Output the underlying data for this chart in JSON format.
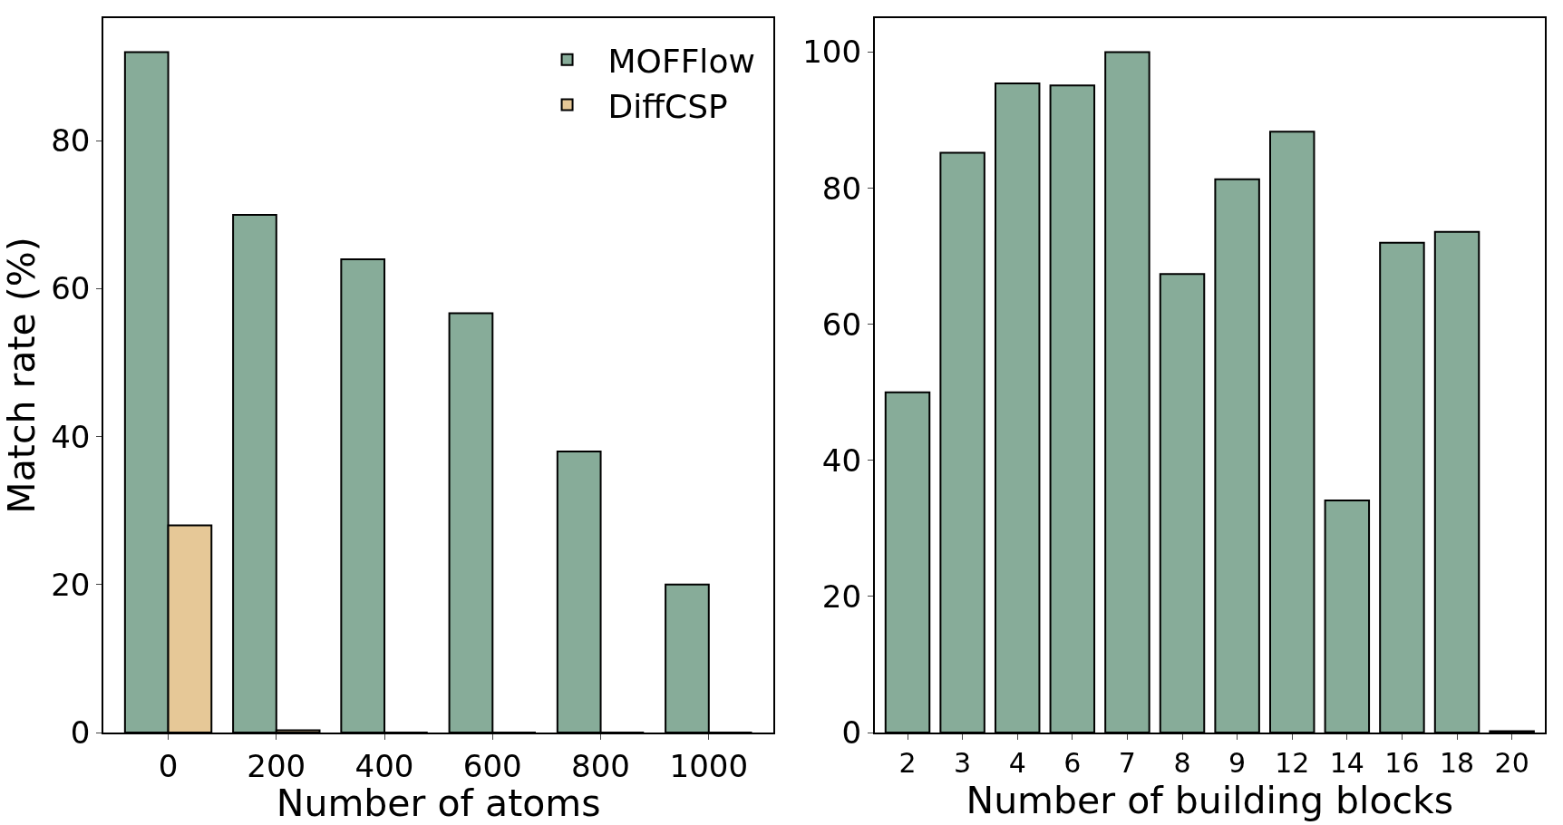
{
  "chart_data": [
    {
      "type": "bar",
      "xlabel": "Number of atoms",
      "ylabel": "Match rate (%)",
      "categories": [
        "0",
        "200",
        "400",
        "600",
        "800",
        "1000"
      ],
      "series": [
        {
          "name": "MOFFlow",
          "color": "#87ac99",
          "values": [
            92.0,
            70.0,
            64.0,
            56.7,
            38.0,
            20.0
          ]
        },
        {
          "name": "DiffCSP",
          "color": "#e6c897",
          "values": [
            28.0,
            0.3,
            0,
            0,
            0,
            0
          ]
        }
      ],
      "ylim": [
        0,
        96.6
      ],
      "yticks": [
        0,
        20,
        40,
        60,
        80
      ],
      "legend": "top right"
    },
    {
      "type": "bar",
      "xlabel": "Number of building blocks",
      "categories": [
        "2",
        "3",
        "4",
        "6",
        "7",
        "8",
        "9",
        "12",
        "14",
        "16",
        "18",
        "20"
      ],
      "series": [
        {
          "color": "#87ac99",
          "values": [
            50.0,
            85.2,
            95.4,
            95.1,
            100.0,
            67.4,
            81.3,
            88.3,
            34.1,
            72.0,
            73.6,
            0.2
          ]
        }
      ],
      "ylim": [
        0,
        105
      ],
      "yticks": [
        0,
        20,
        40,
        60,
        80,
        100
      ],
      "legend": false
    }
  ]
}
